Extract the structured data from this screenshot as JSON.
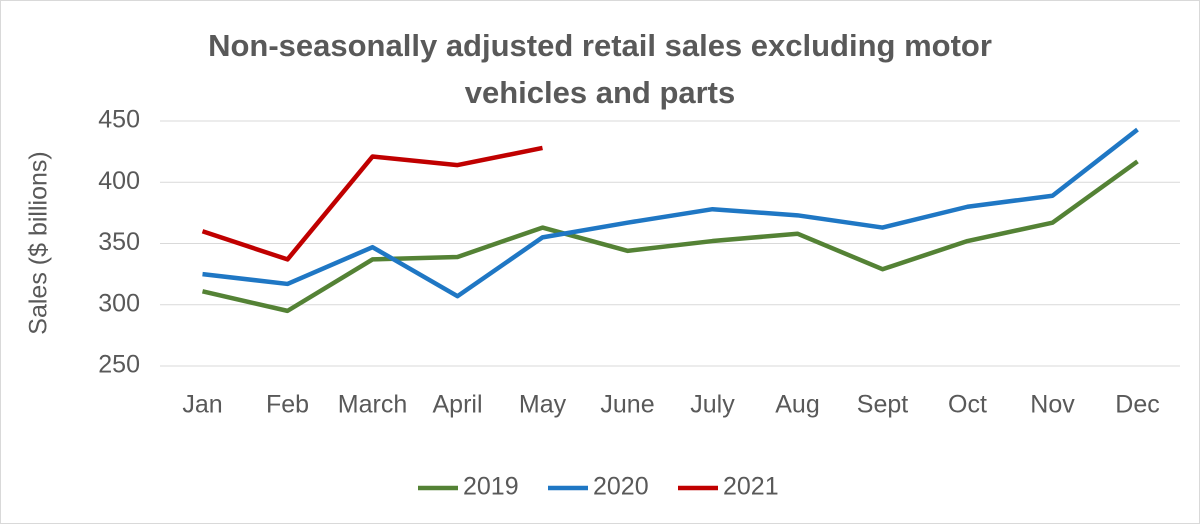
{
  "chart_data": {
    "type": "line",
    "title": "Non-seasonally adjusted retail sales excluding motor vehicles and parts",
    "y_label": "Sales ($ billions)",
    "categories": [
      "Jan",
      "Feb",
      "March",
      "April",
      "May",
      "June",
      "July",
      "Aug",
      "Sept",
      "Oct",
      "Nov",
      "Dec"
    ],
    "series": [
      {
        "name": "2019",
        "color": "#548235",
        "values": [
          311,
          295,
          337,
          339,
          363,
          344,
          352,
          358,
          329,
          352,
          367,
          417
        ]
      },
      {
        "name": "2020",
        "color": "#1f77c4",
        "values": [
          325,
          317,
          347,
          307,
          355,
          367,
          378,
          373,
          363,
          380,
          389,
          443
        ]
      },
      {
        "name": "2021",
        "color": "#c00000",
        "values": [
          360,
          337,
          421,
          414,
          428,
          null,
          null,
          null,
          null,
          null,
          null,
          null
        ]
      }
    ],
    "ylim": [
      250,
      450
    ],
    "yticks": [
      250,
      300,
      350,
      400,
      450
    ],
    "grid": true,
    "legend": "bottom"
  }
}
